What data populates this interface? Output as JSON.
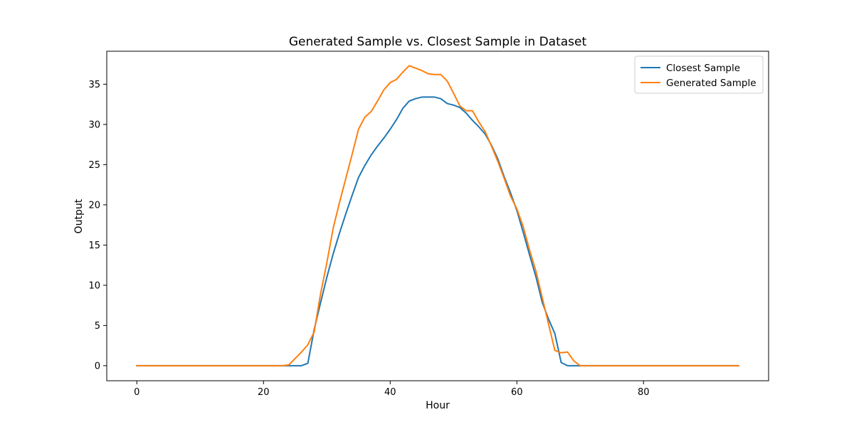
{
  "chart_data": {
    "type": "line",
    "title": "Generated Sample vs. Closest Sample in Dataset",
    "xlabel": "Hour",
    "ylabel": "Output",
    "xlim": [
      -4.75,
      99.75
    ],
    "ylim": [
      -1.87,
      39.1
    ],
    "xticks": [
      0,
      20,
      40,
      60,
      80
    ],
    "yticks": [
      0,
      5,
      10,
      15,
      20,
      25,
      30,
      35
    ],
    "grid": false,
    "legend_position": "top-right",
    "series": [
      {
        "name": "Closest Sample",
        "color": "#1f77b4",
        "x": [
          0,
          23,
          24,
          25,
          26,
          27,
          28,
          29,
          30,
          31,
          32,
          33,
          34,
          35,
          36,
          37,
          38,
          39,
          40,
          41,
          42,
          43,
          44,
          45,
          46,
          47,
          48,
          49,
          50,
          51,
          52,
          53,
          54,
          55,
          56,
          57,
          58,
          59,
          60,
          61,
          62,
          63,
          64,
          65,
          66,
          67,
          68,
          69,
          70,
          95
        ],
        "values": [
          0,
          0,
          0,
          0,
          0,
          0.3,
          4.5,
          7.8,
          11,
          13.9,
          16.5,
          18.9,
          21.2,
          23.4,
          24.9,
          26.2,
          27.3,
          28.3,
          29.4,
          30.6,
          32,
          32.9,
          33.2,
          33.4,
          33.4,
          33.4,
          33.2,
          32.6,
          32.4,
          32.1,
          31.4,
          30.5,
          29.7,
          28.8,
          27.4,
          25.7,
          23.5,
          21.5,
          19.3,
          16.6,
          13.8,
          11.1,
          7.9,
          5.8,
          4,
          0.4,
          0,
          0,
          0,
          0
        ]
      },
      {
        "name": "Generated Sample",
        "color": "#ff7f0e",
        "x": [
          0,
          23,
          24,
          25,
          26,
          27,
          28,
          29,
          30,
          31,
          32,
          33,
          34,
          35,
          36,
          37,
          38,
          39,
          40,
          41,
          42,
          43,
          44,
          45,
          46,
          47,
          48,
          49,
          50,
          51,
          52,
          53,
          54,
          55,
          56,
          57,
          58,
          59,
          60,
          61,
          62,
          63,
          64,
          65,
          66,
          67,
          68,
          69,
          70,
          95
        ],
        "values": [
          0,
          0,
          0.1,
          0.9,
          1.7,
          2.6,
          4.2,
          8.9,
          12.8,
          17.1,
          20.3,
          23.3,
          26.3,
          29.4,
          30.9,
          31.6,
          32.9,
          34.3,
          35.2,
          35.6,
          36.5,
          37.3,
          37,
          36.7,
          36.3,
          36.2,
          36.2,
          35.4,
          33.9,
          32.3,
          31.7,
          31.7,
          30.3,
          29.1,
          27.3,
          25.4,
          23.3,
          21.1,
          19.5,
          17.3,
          14.4,
          11.8,
          8.5,
          5.2,
          1.9,
          1.6,
          1.7,
          0.6,
          0,
          0
        ]
      }
    ]
  }
}
